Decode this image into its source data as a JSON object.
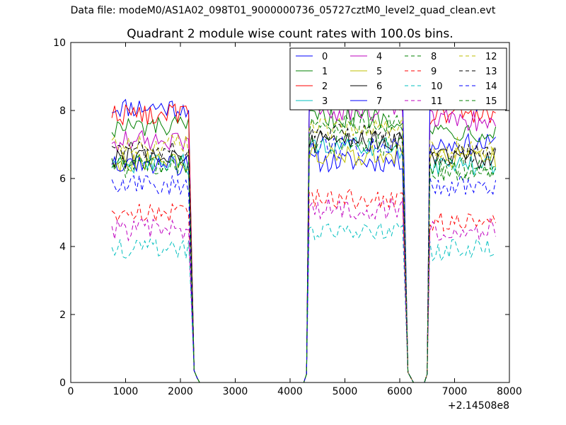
{
  "suptitle": "Data file: modeM0/AS1A02_098T01_9000000736_05727cztM0_level2_quad_clean.evt",
  "chart_data": {
    "type": "line",
    "title": "Quadrant 2 module wise count rates with 100.0s bins.",
    "xlabel": "",
    "ylabel": "",
    "x_offset_label": "+2.14508e8",
    "xlim": [
      0,
      8000
    ],
    "ylim": [
      0,
      10
    ],
    "xticks": [
      0,
      1000,
      2000,
      3000,
      4000,
      5000,
      6000,
      7000,
      8000
    ],
    "yticks": [
      0,
      2,
      4,
      6,
      8,
      10
    ],
    "grid": false,
    "legend_position": "top-right",
    "legend_columns": 4,
    "segments": [
      {
        "start": 750,
        "end": 2150
      },
      {
        "start": 4350,
        "end": 6050
      },
      {
        "start": 6550,
        "end": 7750
      }
    ],
    "dropoffs": [
      {
        "last_x": 2150,
        "points": [
          [
            2250,
            0.35
          ],
          [
            2300,
            0.15
          ],
          [
            2350,
            0
          ]
        ]
      },
      {
        "first_x": 4350,
        "points": [
          [
            4250,
            0
          ],
          [
            4300,
            0.25
          ]
        ]
      },
      {
        "last_x": 6050,
        "points": [
          [
            6150,
            0.3
          ],
          [
            6250,
            0
          ]
        ]
      },
      {
        "first_x": 6550,
        "points": [
          [
            6450,
            0
          ],
          [
            6500,
            0.25
          ]
        ]
      }
    ],
    "zero_range": [
      2350,
      4250
    ],
    "series": [
      {
        "name": "0",
        "color": "#0000ff",
        "dash": "solid",
        "levels": [
          8.1,
          6.5,
          7.0
        ]
      },
      {
        "name": "1",
        "color": "#008000",
        "dash": "solid",
        "levels": [
          7.5,
          7.8,
          7.4
        ]
      },
      {
        "name": "2",
        "color": "#ff0000",
        "dash": "solid",
        "levels": [
          7.9,
          8.3,
          7.9
        ]
      },
      {
        "name": "3",
        "color": "#00bfbf",
        "dash": "solid",
        "levels": [
          6.4,
          6.9,
          6.4
        ]
      },
      {
        "name": "4",
        "color": "#bf00bf",
        "dash": "solid",
        "levels": [
          7.1,
          8.0,
          7.7
        ]
      },
      {
        "name": "5",
        "color": "#bfbf00",
        "dash": "solid",
        "levels": [
          6.5,
          6.7,
          6.6
        ]
      },
      {
        "name": "6",
        "color": "#000000",
        "dash": "solid",
        "levels": [
          6.6,
          7.1,
          6.6
        ]
      },
      {
        "name": "7",
        "color": "#0000ff",
        "dash": "solid",
        "levels": [
          6.4,
          8.6,
          8.3
        ]
      },
      {
        "name": "8",
        "color": "#008000",
        "dash": "dashed",
        "levels": [
          6.3,
          7.0,
          6.2
        ]
      },
      {
        "name": "9",
        "color": "#ff0000",
        "dash": "dashed",
        "levels": [
          5.0,
          5.4,
          4.7
        ]
      },
      {
        "name": "10",
        "color": "#00bfbf",
        "dash": "dashed",
        "levels": [
          3.9,
          4.4,
          3.9
        ]
      },
      {
        "name": "11",
        "color": "#bf00bf",
        "dash": "dashed",
        "levels": [
          4.5,
          5.1,
          4.5
        ]
      },
      {
        "name": "12",
        "color": "#bfbf00",
        "dash": "dashed",
        "levels": [
          7.0,
          7.5,
          6.9
        ]
      },
      {
        "name": "13",
        "color": "#000000",
        "dash": "dashed",
        "levels": [
          6.8,
          7.3,
          6.7
        ]
      },
      {
        "name": "14",
        "color": "#0000ff",
        "dash": "dashed",
        "levels": [
          5.8,
          6.9,
          5.8
        ]
      },
      {
        "name": "15",
        "color": "#008000",
        "dash": "dashed",
        "levels": [
          6.4,
          7.6,
          6.3
        ]
      }
    ]
  }
}
